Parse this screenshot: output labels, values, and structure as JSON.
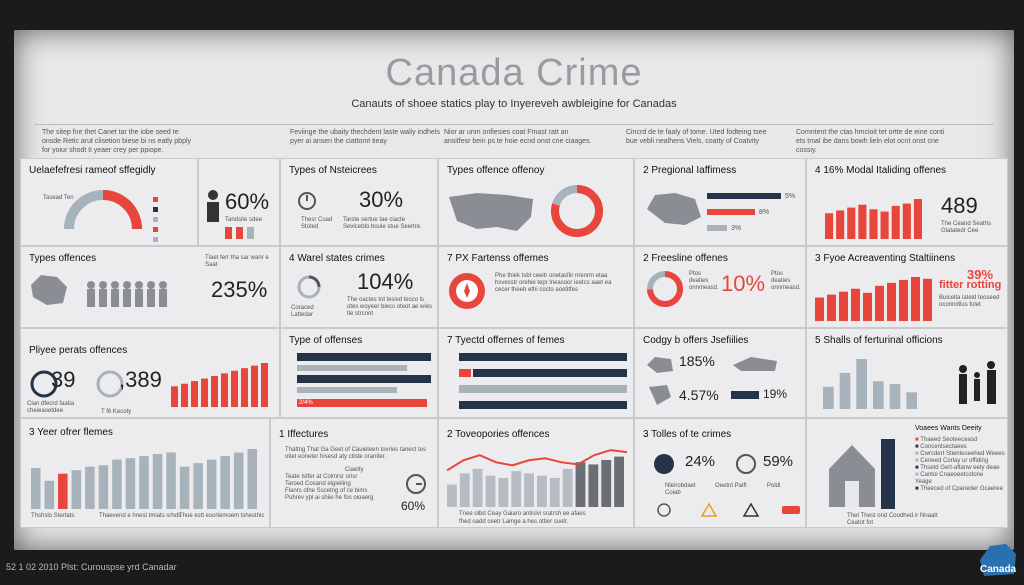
{
  "title": "Canada Crime",
  "subtitle": "Canauts of shoee statics play to Inyereveh awbleigine for Canadas",
  "intro": [
    "The sitep fne thet Canet tar the iobe seed te onsde Retic arut clisetion biese bi ns eatly pbply for yoiur shodt ti yeaer crey per ppiope.",
    "Feviinge the ubaity thechdent laste waliy indhels pyer ai ansen the ciattomt tieay",
    "Nior ar unm onfiesies coat Fmast ratt an ansitfesr bein ps te hoie ecnd onst cne ciaages.",
    "Cincrd de te faaly of tome. Uted fodteing tsee bue vebli nealhens Viels, coatty of Coatvity",
    "Comntent the ctas hmcioit tet ortte de eine conti ets tmal ibe dans bowh lieln elot ocnt onst cne cossiy."
  ],
  "footer": "52 1 02 2010 Plst: Curouspse yrd Canadar",
  "logo": "Canada",
  "colors": {
    "red": "#e8453c",
    "gray": "#a8b2bb",
    "navy": "#253448"
  },
  "cells": {
    "c1": {
      "title": "Uelaefefresi rameof sffegidly",
      "legend": [
        "",
        "",
        "",
        "",
        ""
      ],
      "note": "Tasead Ten"
    },
    "c2": {
      "title": "",
      "value": "60%",
      "note": "Tandsite sdee"
    },
    "c3": {
      "title": "Types of Nsteicrees",
      "value": "30%",
      "note": "Thesr Coad Stoted",
      "note2": "Tarste sertue tae ciacte Sevicetdo boule stue Seertre."
    },
    "c4": {
      "title": "Types offence offenoy"
    },
    "c5": {
      "title": "2 Pregional Iaffimess",
      "v1": "5%",
      "v2": "8%",
      "v3": "3%"
    },
    "c6": {
      "title": "4 16% Modal Italiding offenes",
      "value": "489",
      "note": "The Ceand Seaths Glatatedr Cee"
    },
    "c7": {
      "title": "Types offences",
      "value": "235%",
      "note": "Tlaet ferr tha sar wanr e Saat",
      "icon": "person-icon"
    },
    "c8": {
      "title": "4 Warel states crimes",
      "value": "104%",
      "note": "Coraced Lattedar",
      "note2": "The oactes tot lesivd tesco ls otes woyeer biecs oteot ae wies tle strcnnt"
    },
    "c9": {
      "title": "7 PX Fartenss offemes",
      "note": "Phe thiek tsbl ceeitr onetasfiir nrenrm etaa hsvesstr orehie tepr lneasoor ieetcs aaet ea cecer theeb ethi cocto aoetitfes"
    },
    "c10": {
      "title": "2 Freesline offenes",
      "value": "10%",
      "note": "Ptos deaties onnmeasd."
    },
    "c11": {
      "title": "3 Fyoe Acreaventing Staltiinens",
      "value": "39%",
      "value2": "fitter rotting",
      "note": "Buicelta lateld teoseed oconndilus fulet"
    },
    "c12": {
      "title": "Pliyee perats offences",
      "v1": "39",
      "v2": ",389",
      "note": "Clan dfecrd faatia cheieaoetdee",
      "note2": "T f6 Kecoty"
    },
    "c13": {
      "title": "Type of offenses",
      "value": "2/4%"
    },
    "c14": {
      "title": "7 Tyectd offernes of femes"
    },
    "c15": {
      "title": "Codgy b offers Jsefiilies",
      "v1": "185%",
      "v2": "4.57%",
      "v3": "19%"
    },
    "c16": {
      "title": "5 Shalls of ferturinal officions"
    },
    "c17": {
      "title": "3 Yeer ofrer flemes",
      "note": "Thshslo Stertats",
      "note2": "Thaevend e hnest tmiats srhds",
      "note3": "Thue estt esortemoem tshesthic"
    },
    "c18": {
      "title": "1 Iffectures",
      "value": "60%",
      "note": "Thattng That Ga Geet of Cauieteen tovries tanect tes otiet eoneter hisesd aty ctiste oraniter.",
      "bullets": [
        "Ciaetty",
        "Teate Istfer at Colmrsr orisr",
        "Taroed Cosand eigieiling",
        "Flanrs ofne Sscetng of ce bims",
        "Puhrev ypl ai shiie he fos oioaerg"
      ]
    },
    "c19": {
      "title": "2 Toveopories offences",
      "note": "Tnee olbd Ceay Gaiaro antisivi sratrsh ee afaes",
      "note2": "fhed oadd ceetr Lamge a hes ottier suetr."
    },
    "c20": {
      "title": "3 Tolles of te crimes",
      "v1": "24%",
      "v2": "59%",
      "labels": [
        "Nleirobdaet Coiab",
        "Oeetnt Paift",
        "Poldl"
      ]
    },
    "c21": {
      "title": "Voaees Wants Deeity",
      "legend": [
        "Thaeed Seoteeceasd",
        "Concentsectaees",
        "Cwrcdert Stienteseehed Weees",
        "Ceneed Corlay ur offiding",
        "Thsetd Gert-aftanw eety deae",
        "Cantoi Cnaeoeetcotone",
        "Yeage",
        "Theeced of Cpaneder Gcaeree"
      ],
      "note": "Thet Thest ond Coodhed ir Nnaatt Ceatot fot"
    }
  },
  "chart_data": [
    {
      "type": "bar",
      "title": "3 Yeer ofrer flemes",
      "values": [
        58,
        40,
        50,
        55,
        60,
        62,
        70,
        72,
        75,
        78,
        80,
        60,
        65,
        70,
        75,
        80,
        85
      ]
    },
    {
      "type": "bar",
      "title": "5 Shalls of ferturinal officions",
      "values": [
        40,
        65,
        90,
        50,
        45,
        30
      ]
    },
    {
      "type": "bar",
      "title": "4 16% Modal Italiding offenes",
      "values": [
        45,
        50,
        55,
        60,
        52,
        48,
        58,
        62,
        70
      ]
    },
    {
      "type": "line",
      "title": "2 Toveopories offences",
      "values": [
        30,
        40,
        45,
        38,
        35,
        40,
        42,
        38,
        36,
        45,
        50,
        48
      ]
    }
  ]
}
